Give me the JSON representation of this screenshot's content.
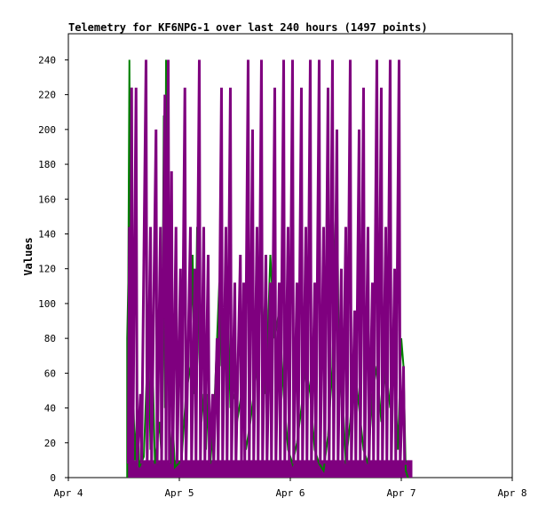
{
  "chart_data": {
    "type": "line",
    "title": "Telemetry for KF6NPG-1 over last 240 hours (1497 points)",
    "xlabel": "",
    "ylabel": "Values",
    "x_ticks": [
      "Apr 4",
      "Apr 5",
      "Apr 6",
      "Apr 7",
      "Apr 8"
    ],
    "xlim": [
      "Apr 4",
      "Apr 8"
    ],
    "ylim": [
      0,
      255
    ],
    "y_ticks": [
      0,
      20,
      40,
      60,
      80,
      100,
      120,
      140,
      160,
      180,
      200,
      220,
      240
    ],
    "grid": false,
    "legend": "none",
    "series_colors": [
      "#008000",
      "#7f007f"
    ],
    "series": [
      {
        "values": [
          [
            4.53,
            0
          ],
          [
            4.53,
            80
          ],
          [
            4.54,
            112
          ],
          [
            4.55,
            240
          ],
          [
            4.56,
            120
          ],
          [
            4.57,
            224
          ],
          [
            4.58,
            60
          ],
          [
            4.6,
            10
          ],
          [
            4.62,
            40
          ],
          [
            4.64,
            6
          ],
          [
            4.68,
            12
          ],
          [
            4.7,
            48
          ],
          [
            4.72,
            80
          ],
          [
            4.74,
            16
          ],
          [
            4.76,
            64
          ],
          [
            4.78,
            8
          ],
          [
            4.82,
            32
          ],
          [
            4.84,
            12
          ],
          [
            4.86,
            208
          ],
          [
            4.87,
            40
          ],
          [
            4.88,
            240
          ],
          [
            4.89,
            200
          ],
          [
            4.9,
            64
          ],
          [
            4.92,
            8
          ],
          [
            4.94,
            32
          ],
          [
            4.96,
            6
          ],
          [
            5.02,
            10
          ],
          [
            5.06,
            48
          ],
          [
            5.1,
            64
          ],
          [
            5.12,
            128
          ],
          [
            5.14,
            48
          ],
          [
            5.16,
            144
          ],
          [
            5.18,
            72
          ],
          [
            5.2,
            32
          ],
          [
            5.22,
            48
          ],
          [
            5.24,
            16
          ],
          [
            5.26,
            48
          ],
          [
            5.28,
            8
          ],
          [
            5.32,
            48
          ],
          [
            5.36,
            112
          ],
          [
            5.38,
            64
          ],
          [
            5.4,
            96
          ],
          [
            5.42,
            64
          ],
          [
            5.44,
            96
          ],
          [
            5.46,
            40
          ],
          [
            5.5,
            48
          ],
          [
            5.52,
            32
          ],
          [
            5.56,
            48
          ],
          [
            5.6,
            16
          ],
          [
            5.64,
            32
          ],
          [
            5.7,
            64
          ],
          [
            5.74,
            112
          ],
          [
            5.78,
            48
          ],
          [
            5.82,
            128
          ],
          [
            5.86,
            80
          ],
          [
            5.9,
            96
          ],
          [
            5.94,
            48
          ],
          [
            5.98,
            16
          ],
          [
            6.02,
            8
          ],
          [
            6.06,
            20
          ],
          [
            6.1,
            40
          ],
          [
            6.14,
            64
          ],
          [
            6.18,
            48
          ],
          [
            6.22,
            16
          ],
          [
            6.26,
            8
          ],
          [
            6.3,
            4
          ],
          [
            6.34,
            24
          ],
          [
            6.38,
            64
          ],
          [
            6.42,
            184
          ],
          [
            6.44,
            40
          ],
          [
            6.46,
            64
          ],
          [
            6.5,
            8
          ],
          [
            6.54,
            32
          ],
          [
            6.58,
            64
          ],
          [
            6.62,
            40
          ],
          [
            6.66,
            16
          ],
          [
            6.7,
            8
          ],
          [
            6.74,
            48
          ],
          [
            6.78,
            64
          ],
          [
            6.82,
            32
          ],
          [
            6.86,
            64
          ],
          [
            6.9,
            40
          ],
          [
            6.94,
            60
          ],
          [
            6.97,
            16
          ],
          [
            7.0,
            80
          ],
          [
            7.02,
            64
          ],
          [
            7.04,
            4
          ],
          [
            7.06,
            0
          ]
        ]
      },
      {
        "values": [
          [
            4.54,
            8
          ],
          [
            4.55,
            144
          ],
          [
            4.56,
            4
          ],
          [
            4.57,
            224
          ],
          [
            4.58,
            8
          ],
          [
            4.61,
            224
          ],
          [
            4.62,
            8
          ],
          [
            4.65,
            48
          ],
          [
            4.66,
            8
          ],
          [
            4.7,
            240
          ],
          [
            4.71,
            8
          ],
          [
            4.74,
            144
          ],
          [
            4.75,
            8
          ],
          [
            4.79,
            200
          ],
          [
            4.8,
            8
          ],
          [
            4.83,
            144
          ],
          [
            4.84,
            8
          ],
          [
            4.87,
            220
          ],
          [
            4.88,
            8
          ],
          [
            4.9,
            240
          ],
          [
            4.91,
            8
          ],
          [
            4.93,
            176
          ],
          [
            4.94,
            8
          ],
          [
            4.97,
            144
          ],
          [
            4.98,
            8
          ],
          [
            5.01,
            120
          ],
          [
            5.02,
            8
          ],
          [
            5.05,
            224
          ],
          [
            5.06,
            8
          ],
          [
            5.1,
            144
          ],
          [
            5.11,
            8
          ],
          [
            5.14,
            120
          ],
          [
            5.15,
            8
          ],
          [
            5.18,
            240
          ],
          [
            5.19,
            8
          ],
          [
            5.22,
            144
          ],
          [
            5.23,
            8
          ],
          [
            5.26,
            128
          ],
          [
            5.27,
            8
          ],
          [
            5.3,
            48
          ],
          [
            5.31,
            8
          ],
          [
            5.34,
            80
          ],
          [
            5.35,
            8
          ],
          [
            5.38,
            224
          ],
          [
            5.39,
            8
          ],
          [
            5.42,
            144
          ],
          [
            5.43,
            8
          ],
          [
            5.46,
            224
          ],
          [
            5.47,
            8
          ],
          [
            5.5,
            112
          ],
          [
            5.51,
            8
          ],
          [
            5.55,
            128
          ],
          [
            5.56,
            8
          ],
          [
            5.58,
            112
          ],
          [
            5.59,
            8
          ],
          [
            5.62,
            240
          ],
          [
            5.63,
            8
          ],
          [
            5.66,
            200
          ],
          [
            5.67,
            8
          ],
          [
            5.7,
            144
          ],
          [
            5.71,
            8
          ],
          [
            5.74,
            240
          ],
          [
            5.75,
            8
          ],
          [
            5.78,
            128
          ],
          [
            5.79,
            8
          ],
          [
            5.82,
            112
          ],
          [
            5.83,
            8
          ],
          [
            5.86,
            224
          ],
          [
            5.87,
            8
          ],
          [
            5.9,
            112
          ],
          [
            5.91,
            8
          ],
          [
            5.94,
            240
          ],
          [
            5.95,
            8
          ],
          [
            5.98,
            144
          ],
          [
            5.99,
            8
          ],
          [
            6.02,
            240
          ],
          [
            6.03,
            8
          ],
          [
            6.06,
            112
          ],
          [
            6.07,
            8
          ],
          [
            6.1,
            224
          ],
          [
            6.11,
            8
          ],
          [
            6.14,
            144
          ],
          [
            6.15,
            8
          ],
          [
            6.18,
            240
          ],
          [
            6.19,
            8
          ],
          [
            6.22,
            112
          ],
          [
            6.23,
            8
          ],
          [
            6.26,
            240
          ],
          [
            6.27,
            8
          ],
          [
            6.3,
            144
          ],
          [
            6.31,
            8
          ],
          [
            6.34,
            224
          ],
          [
            6.35,
            8
          ],
          [
            6.38,
            240
          ],
          [
            6.39,
            8
          ],
          [
            6.42,
            200
          ],
          [
            6.43,
            8
          ],
          [
            6.46,
            120
          ],
          [
            6.47,
            8
          ],
          [
            6.5,
            144
          ],
          [
            6.51,
            8
          ],
          [
            6.54,
            240
          ],
          [
            6.55,
            8
          ],
          [
            6.58,
            96
          ],
          [
            6.59,
            8
          ],
          [
            6.62,
            200
          ],
          [
            6.63,
            8
          ],
          [
            6.66,
            224
          ],
          [
            6.67,
            8
          ],
          [
            6.7,
            144
          ],
          [
            6.71,
            8
          ],
          [
            6.74,
            112
          ],
          [
            6.75,
            8
          ],
          [
            6.78,
            240
          ],
          [
            6.79,
            8
          ],
          [
            6.82,
            224
          ],
          [
            6.83,
            8
          ],
          [
            6.86,
            144
          ],
          [
            6.87,
            8
          ],
          [
            6.9,
            240
          ],
          [
            6.91,
            8
          ],
          [
            6.94,
            120
          ],
          [
            6.95,
            8
          ],
          [
            6.98,
            240
          ],
          [
            6.99,
            8
          ],
          [
            7.02,
            64
          ],
          [
            7.03,
            8
          ],
          [
            7.06,
            8
          ]
        ]
      }
    ],
    "baseline_band": {
      "from": 4.53,
      "to": 7.1,
      "low": 0,
      "high": 10
    }
  }
}
